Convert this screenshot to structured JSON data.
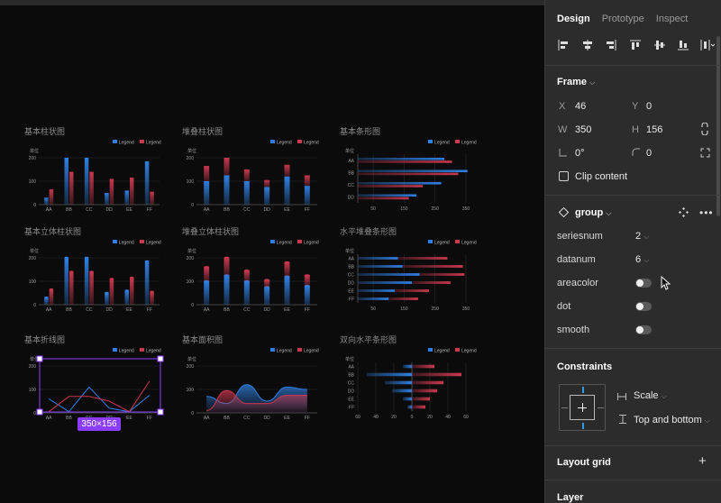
{
  "colors": {
    "blue": "#2f7fe0",
    "red": "#c8384e",
    "selection": "#8b3dff",
    "axis": "#6d6d6d",
    "grid": "#2b2b2b"
  },
  "canvas": {
    "legend_label": "Legend",
    "unit_label": "单位",
    "selection_size": "350×156",
    "charts": [
      {
        "title": "基本柱状图"
      },
      {
        "title": "堆叠柱状图"
      },
      {
        "title": "基本条形图"
      },
      {
        "title": "基本立体柱状图"
      },
      {
        "title": "堆叠立体柱状图"
      },
      {
        "title": "水平堆叠条形图"
      },
      {
        "title": "基本折线图"
      },
      {
        "title": "基本面积图"
      },
      {
        "title": "双向水平条形图"
      }
    ]
  },
  "chart_data": [
    {
      "type": "bar",
      "title": "基本柱状图",
      "categories": [
        "AA",
        "BB",
        "CC",
        "DD",
        "EE",
        "FF"
      ],
      "yticks": [
        "0",
        "100",
        "200"
      ],
      "ylim": [
        0,
        200
      ],
      "series": [
        {
          "name": "Legend",
          "values": [
            30,
            200,
            200,
            50,
            60,
            185
          ]
        },
        {
          "name": "Legend",
          "values": [
            65,
            140,
            140,
            110,
            115,
            55
          ]
        }
      ]
    },
    {
      "type": "bar",
      "title": "堆叠柱状图",
      "categories": [
        "AA",
        "BB",
        "CC",
        "DD",
        "EE",
        "FF"
      ],
      "yticks": [
        "0",
        "100",
        "200"
      ],
      "ylim": [
        0,
        200
      ],
      "stacked": true,
      "series": [
        {
          "name": "Legend",
          "values": [
            100,
            125,
            100,
            75,
            120,
            80
          ]
        },
        {
          "name": "Legend",
          "values": [
            65,
            75,
            50,
            30,
            50,
            45
          ]
        }
      ]
    },
    {
      "type": "bar",
      "title": "基本条形图",
      "orientation": "horizontal",
      "categories": [
        "AA",
        "BB",
        "CC",
        "DD"
      ],
      "xticks": [
        "50",
        "150",
        "250",
        "350"
      ],
      "xlim": [
        0,
        350
      ],
      "series": [
        {
          "name": "Legend",
          "values": [
            280,
            355,
            270,
            190
          ]
        },
        {
          "name": "Legend",
          "values": [
            305,
            325,
            210,
            165
          ]
        }
      ]
    },
    {
      "type": "bar",
      "title": "基本立体柱状图",
      "categories": [
        "AA",
        "BB",
        "CC",
        "DD",
        "EE",
        "FF"
      ],
      "yticks": [
        "0",
        "100",
        "200"
      ],
      "ylim": [
        0,
        200
      ],
      "series": [
        {
          "name": "Legend",
          "values": [
            30,
            200,
            200,
            50,
            60,
            185
          ]
        },
        {
          "name": "Legend",
          "values": [
            65,
            140,
            140,
            110,
            115,
            55
          ]
        }
      ]
    },
    {
      "type": "bar",
      "title": "堆叠立体柱状图",
      "categories": [
        "AA",
        "BB",
        "CC",
        "DD",
        "EE",
        "FF"
      ],
      "yticks": [
        "0",
        "100",
        "200"
      ],
      "ylim": [
        0,
        200
      ],
      "stacked": true,
      "series": [
        {
          "name": "Legend",
          "values": [
            100,
            125,
            100,
            75,
            120,
            80
          ]
        },
        {
          "name": "Legend",
          "values": [
            60,
            75,
            45,
            30,
            60,
            45
          ]
        }
      ]
    },
    {
      "type": "bar",
      "title": "水平堆叠条形图",
      "orientation": "horizontal",
      "stacked": true,
      "categories": [
        "AA",
        "BB",
        "CC",
        "DD",
        "EE",
        "FF"
      ],
      "xticks": [
        "50",
        "150",
        "250",
        "350"
      ],
      "xlim": [
        0,
        350
      ],
      "series": [
        {
          "name": "Legend",
          "values": [
            130,
            145,
            200,
            175,
            120,
            100
          ]
        },
        {
          "name": "Legend",
          "values": [
            160,
            195,
            145,
            125,
            110,
            95
          ]
        }
      ]
    },
    {
      "type": "line",
      "title": "基本折线图",
      "categories": [
        "AA",
        "BB",
        "CC",
        "DD",
        "EE",
        "FF"
      ],
      "yticks": [
        "0",
        "100",
        "200"
      ],
      "ylim": [
        0,
        200
      ],
      "series": [
        {
          "name": "Legend",
          "values": [
            60,
            5,
            110,
            20,
            5,
            75
          ]
        },
        {
          "name": "Legend",
          "values": [
            5,
            70,
            70,
            50,
            5,
            135
          ]
        }
      ]
    },
    {
      "type": "area",
      "title": "基本面积图",
      "categories": [
        "AA",
        "BB",
        "CC",
        "DD",
        "EE",
        "FF"
      ],
      "yticks": [
        "0",
        "100",
        "200"
      ],
      "ylim": [
        0,
        200
      ],
      "series": [
        {
          "name": "Legend",
          "values": [
            70,
            40,
            120,
            50,
            110,
            100
          ]
        },
        {
          "name": "Legend",
          "values": [
            10,
            95,
            40,
            40,
            75,
            75
          ]
        }
      ]
    },
    {
      "type": "bar",
      "title": "双向水平条形图",
      "orientation": "horizontal",
      "diverging": true,
      "categories": [
        "AA",
        "BB",
        "CC",
        "DD",
        "EE",
        "FF"
      ],
      "xticks": [
        "60",
        "40",
        "20",
        "0",
        "20",
        "40",
        "60"
      ],
      "xlim": [
        -60,
        60
      ],
      "series": [
        {
          "name": "Legend",
          "values": [
            -10,
            -50,
            -30,
            -22,
            -10,
            -5
          ]
        },
        {
          "name": "Legend",
          "values": [
            25,
            55,
            35,
            28,
            20,
            15
          ]
        }
      ]
    }
  ],
  "panel": {
    "tabs": [
      "Design",
      "Prototype",
      "Inspect"
    ],
    "frame": {
      "title": "Frame",
      "x_label": "X",
      "x": "46",
      "y_label": "Y",
      "y": "0",
      "w_label": "W",
      "w": "350",
      "h_label": "H",
      "h": "156",
      "rotation": "0°",
      "radius": "0",
      "clip_label": "Clip content"
    },
    "component": {
      "name": "group",
      "props": [
        {
          "name": "seriesnum",
          "value": "2"
        },
        {
          "name": "datanum",
          "value": "6"
        },
        {
          "name": "areacolor",
          "toggle": false
        },
        {
          "name": "dot",
          "toggle": false
        },
        {
          "name": "smooth",
          "toggle": false
        }
      ]
    },
    "constraints": {
      "title": "Constraints",
      "horizontal": "Scale",
      "vertical": "Top and bottom"
    },
    "layout_grid": "Layout grid",
    "layer": "Layer"
  }
}
